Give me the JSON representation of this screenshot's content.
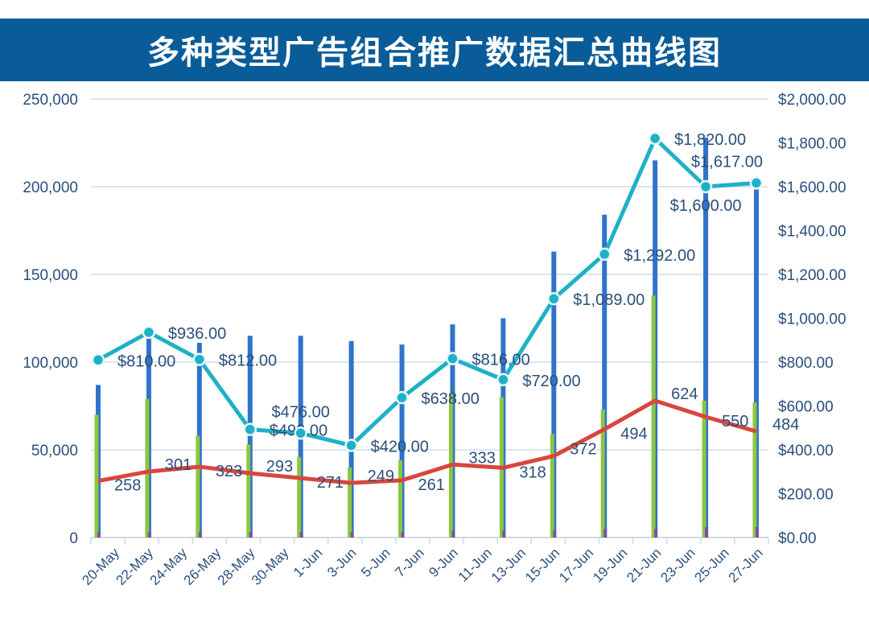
{
  "title": "多种类型广告组合推广数据汇总曲线图",
  "chart_data": {
    "type": "bar+line",
    "title": "多种类型广告组合推广数据汇总曲线图",
    "x_tick_labels": [
      "20-May",
      "22-May",
      "24-May",
      "26-May",
      "28-May",
      "30-May",
      "1-Jun",
      "3-Jun",
      "5-Jun",
      "7-Jun",
      "9-Jun",
      "11-Jun",
      "13-Jun",
      "15-Jun",
      "17-Jun",
      "19-Jun",
      "21-Jun",
      "23-Jun",
      "25-Jun",
      "27-Jun"
    ],
    "y_left": {
      "range": [
        0,
        250000
      ],
      "ticks": [
        "0",
        "50,000",
        "100,000",
        "150,000",
        "200,000",
        "250,000"
      ]
    },
    "y_right": {
      "range": [
        0,
        2000
      ],
      "ticks": [
        "$0.00",
        "$200.00",
        "$400.00",
        "$600.00",
        "$800.00",
        "$1,000.00",
        "$1,200.00",
        "$1,400.00",
        "$1,600.00",
        "$1,800.00",
        "$2,000.00"
      ]
    },
    "grid": true,
    "bar_series": [
      {
        "axis": "left",
        "color": "#2f74c8",
        "values": [
          87000,
          115000,
          111000,
          115000,
          115000,
          112000,
          110000,
          121500,
          125000,
          163000,
          184000,
          215000,
          228000,
          203000
        ]
      },
      {
        "axis": "left",
        "color": "#8cc63f",
        "values": [
          70000,
          79000,
          58000,
          53000,
          46000,
          40000,
          44000,
          82000,
          80000,
          59000,
          73000,
          138000,
          78000,
          77000
        ]
      },
      {
        "axis": "left",
        "color": "#7a4fa8",
        "values": [
          3000,
          3000,
          3000,
          3000,
          3000,
          3000,
          3000,
          4000,
          4000,
          4000,
          5000,
          5000,
          6000,
          6000
        ]
      }
    ],
    "line_series": [
      {
        "axis": "right",
        "color": "#1fb1c6",
        "markers": true,
        "values": [
          810,
          936,
          812,
          493,
          476,
          420,
          638,
          816,
          720,
          1089,
          1292,
          1820,
          1600,
          1617
        ],
        "labels": [
          "$810.00",
          "$936.00",
          "$812.00",
          "$493.00",
          "$476.00",
          "$420.00",
          "$638.00",
          "$816.00",
          "$720.00",
          "$1,089.00",
          "$1,292.00",
          "$1,820.00",
          "$1,600.00",
          "$1,617.00"
        ]
      },
      {
        "axis": "right",
        "color": "#d9463e",
        "markers": false,
        "values": [
          258,
          301,
          323,
          293,
          271,
          249,
          261,
          333,
          318,
          372,
          494,
          624,
          550,
          484
        ],
        "labels": [
          "258",
          "301",
          "323",
          "293",
          "271",
          "249",
          "261",
          "333",
          "318",
          "372",
          "494",
          "624",
          "550",
          "484"
        ]
      }
    ]
  }
}
